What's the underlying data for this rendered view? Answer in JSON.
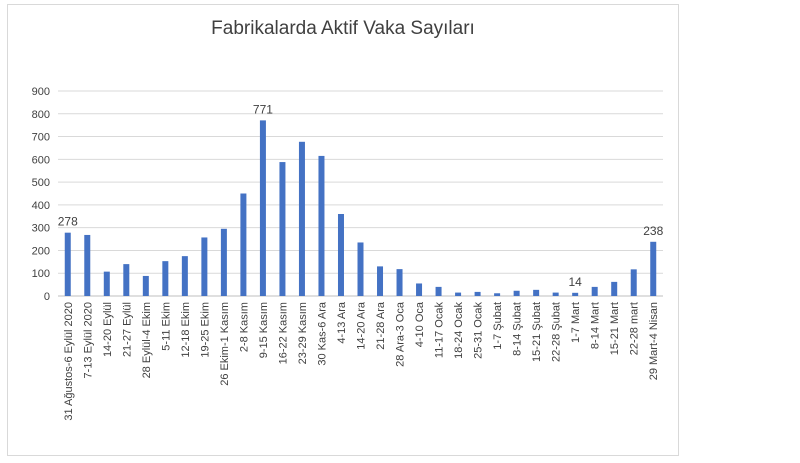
{
  "chart_data": {
    "type": "bar",
    "title": "Fabrikalarda Aktif Vaka Sayıları",
    "xlabel": "",
    "ylabel": "",
    "ylim": [
      0,
      900
    ],
    "yticks": [
      0,
      100,
      200,
      300,
      400,
      500,
      600,
      700,
      800,
      900
    ],
    "grid": true,
    "legend": "none",
    "bar_color": "#4472c4",
    "categories": [
      "31 Ağustos-6 Eylül 2020",
      "7-13 Eylül 2020",
      "14-20 Eylül",
      "21-27 Eylül",
      "28 Eylül-4 Ekim",
      "5-11 Ekim",
      "12-18 Ekim",
      "19-25 Ekim",
      "26 Ekim-1 Kasım",
      "2-8 Kasım",
      "9-15 Kasım",
      "16-22 Kasım",
      "23-29 Kasım",
      "30 Kas-6 Ara",
      "4-13 Ara",
      "14-20 Ara",
      "21-28 Ara",
      "28 Ara-3 Oca",
      "4-10 Oca",
      "11-17 Ocak",
      "18-24 Ocak",
      "25-31 Ocak",
      "1-7 Şubat",
      "8-14 Şubat",
      "15-21 Şubat",
      "22-28 Şubat",
      "1-7 Mart",
      "8-14 Mart",
      "15-21 Mart",
      "22-28 mart",
      "29 Mart-4 Nisan"
    ],
    "values": [
      278,
      268,
      107,
      140,
      88,
      153,
      175,
      257,
      295,
      450,
      771,
      588,
      677,
      615,
      360,
      235,
      130,
      118,
      55,
      40,
      15,
      18,
      12,
      23,
      27,
      15,
      14,
      40,
      62,
      117,
      238
    ],
    "data_labels": [
      {
        "index": 0,
        "text": "278"
      },
      {
        "index": 10,
        "text": "771"
      },
      {
        "index": 26,
        "text": "14"
      },
      {
        "index": 30,
        "text": "238"
      }
    ]
  }
}
